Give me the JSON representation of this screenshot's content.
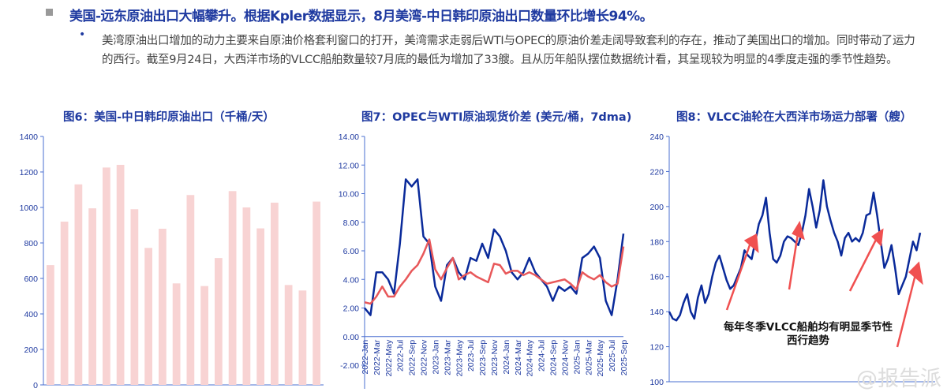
{
  "heading": "美国-远东原油出口大幅攀升。根据Kpler数据显示，8月美湾-中日韩印原油出口数量环比增长94%。",
  "paragraph": "美湾原油出口增加的动力主要来自原油价格套利窗口的打开，美湾需求走弱后WTI与OPEC的原油价差走阔导致套利的存在，推动了美国出口的增加。同时带动了运力的西行。截至9月24日，大西洋市场的VLCC船舶数量较7月底的最低为增加了33艘。且从历年船队摆位数据统计看，其呈现较为明显的4季度走强的季节性趋势。",
  "watermark": "@报告派",
  "colors": {
    "title": "#1f3aa0",
    "bar": "#f8d3d3",
    "blue": "#0a2a9a",
    "red": "#e8585a"
  },
  "chart_data": [
    {
      "type": "bar",
      "title": "图6：美国-中日韩印原油出口（千桶/天）",
      "ylim": [
        0,
        1400
      ],
      "yticks": [
        0,
        200,
        400,
        600,
        800,
        1000,
        1200,
        1400
      ],
      "values": [
        675,
        920,
        1130,
        995,
        1225,
        1240,
        990,
        772,
        880,
        572,
        1070,
        557,
        715,
        1092,
        1000,
        882,
        1027,
        563,
        532,
        1033
      ]
    },
    {
      "type": "line",
      "title": "图7：OPEC与WTI原油现货价差 (美元/桶，7dma)",
      "ylim": [
        -2,
        14
      ],
      "yticks": [
        "-2.00",
        "0.00",
        "2.00",
        "4.00",
        "6.00",
        "8.00",
        "10.00",
        "12.00",
        "14.00"
      ],
      "xticks": [
        "2022-Jan",
        "2022-Mar",
        "2022-May",
        "2022-Jul",
        "2022-Sep",
        "2022-Nov",
        "2023-Jan",
        "2023-Mar",
        "2023-May",
        "2023-Jul",
        "2023-Sep",
        "2023-Nov",
        "2024-Jan",
        "2024-Mar",
        "2024-May",
        "2024-Jul",
        "2024-Sep",
        "2024-Nov",
        "2025-Jan",
        "2025-Mar",
        "2025-May",
        "2025-Jul",
        "2025-Sep"
      ],
      "series": [
        {
          "color": "#0a2a9a",
          "values": [
            2.0,
            1.5,
            4.5,
            4.5,
            4.0,
            3.0,
            6.5,
            11,
            10.5,
            11,
            7,
            6.5,
            3.5,
            2.5,
            5,
            5.5,
            4.5,
            4,
            5.5,
            5.3,
            6.5,
            5.5,
            7.5,
            7,
            6,
            4.5,
            4,
            4.5,
            5.5,
            4.5,
            4,
            3.5,
            2.5,
            3.5,
            3.2,
            3.5,
            3.0,
            5.5,
            5.8,
            6.3,
            5.5,
            2.5,
            1.5,
            4,
            7.2
          ]
        },
        {
          "color": "#e8585a",
          "values": [
            2.4,
            2.3,
            2.8,
            3.5,
            2.8,
            2.8,
            3.5,
            4,
            4.6,
            5,
            5.8,
            6.8,
            4.7,
            4,
            4.8,
            5.5,
            4,
            4.3,
            4.5,
            4.2,
            4,
            3.8,
            5.1,
            5,
            4.4,
            4.6,
            4.6,
            4.3,
            4.5,
            4.3,
            4,
            3.7,
            3.8,
            3.9,
            4,
            3.7,
            3.3,
            4.5,
            4.2,
            4,
            4.3,
            3.8,
            3.5,
            3.7,
            6.3
          ]
        }
      ]
    },
    {
      "type": "line",
      "title": "图8：VLCC油轮在大西洋市场运力部署（艘）",
      "ylim": [
        100,
        240
      ],
      "yticks": [
        100,
        120,
        140,
        160,
        180,
        200,
        220,
        240
      ],
      "annotation": "每年冬季VLCC船舶均有明显季节性西行趋势",
      "annotation_lines": [
        "每年冬季VLCC船舶均有明显季节性",
        "西行趋势"
      ],
      "series": [
        {
          "color": "#0a2a9a",
          "values": [
            140,
            136,
            135,
            138,
            145,
            150,
            140,
            136,
            148,
            155,
            145,
            150,
            160,
            168,
            172,
            165,
            158,
            153,
            155,
            160,
            165,
            175,
            172,
            170,
            180,
            190,
            195,
            205,
            185,
            170,
            168,
            172,
            180,
            183,
            182,
            180,
            178,
            185,
            195,
            210,
            200,
            188,
            198,
            215,
            200,
            192,
            185,
            180,
            172,
            182,
            185,
            180,
            182,
            180,
            185,
            195,
            196,
            208,
            195,
            180,
            165,
            170,
            178,
            165,
            150,
            155,
            160,
            170,
            180,
            175,
            185
          ]
        }
      ]
    }
  ]
}
